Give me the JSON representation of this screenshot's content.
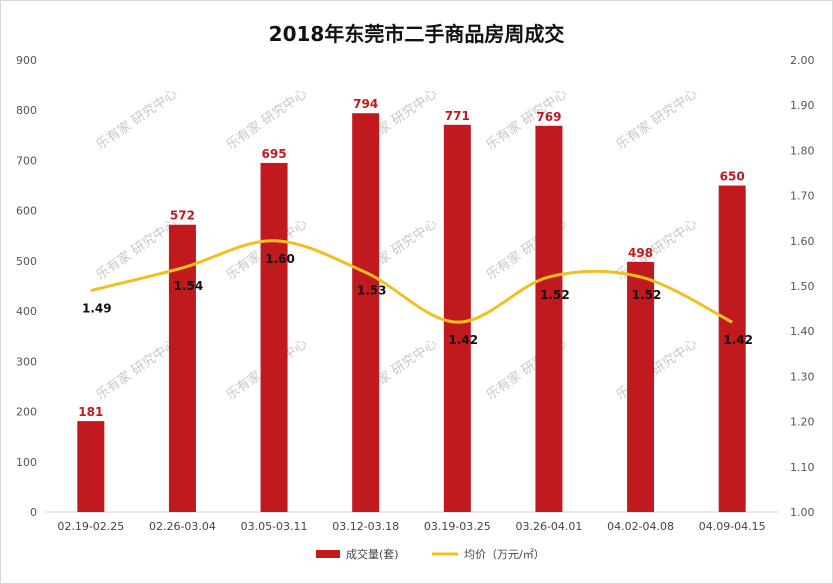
{
  "chart_data": {
    "type": "bar",
    "title": "2018年东莞市二手商品房周成交",
    "categories": [
      "02.19-02.25",
      "02.26-03.04",
      "03.05-03.11",
      "03.12-03.18",
      "03.19-03.25",
      "03.26-04.01",
      "04.02-04.08",
      "04.09-04.15"
    ],
    "series": [
      {
        "name": "成交量(套)",
        "type": "bar",
        "axis": "left",
        "color": "#c01a1f",
        "values": [
          181,
          572,
          695,
          794,
          771,
          769,
          498,
          650
        ]
      },
      {
        "name": "均价（万元/㎡）",
        "type": "line",
        "axis": "right",
        "color": "#f0c020",
        "values": [
          1.49,
          1.54,
          1.6,
          1.53,
          1.42,
          1.52,
          1.52,
          1.42
        ]
      }
    ],
    "ylim": [
      0,
      900
    ],
    "y2lim": [
      1.0,
      2.0
    ],
    "yticks": [
      "0",
      "100",
      "200",
      "300",
      "400",
      "500",
      "600",
      "700",
      "800",
      "900"
    ],
    "y2ticks": [
      "1.00",
      "1.10",
      "1.20",
      "1.30",
      "1.40",
      "1.50",
      "1.60",
      "1.70",
      "1.80",
      "1.90",
      "2.00"
    ],
    "grid": false,
    "legend_position": "bottom",
    "watermark": "乐有家 研究中心"
  }
}
